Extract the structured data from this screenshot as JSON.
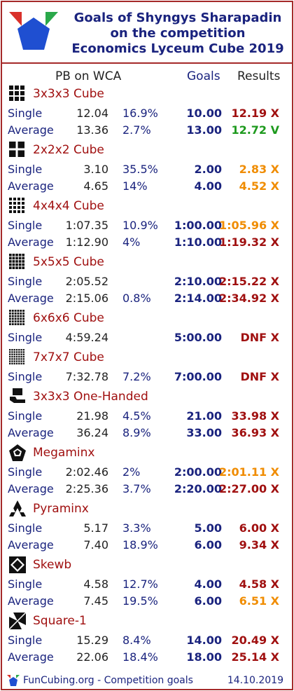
{
  "header": {
    "title_line1": "Goals of Shyngys Sharapadin",
    "title_line2": "on the competition",
    "title_line3": "Economics Lyceum Cube 2019"
  },
  "columns": {
    "pb": "PB on WCA",
    "goals": "Goals",
    "results": "Results"
  },
  "colors": {
    "border": "#a52a2a",
    "label": "#1a237e",
    "event": "#a01010",
    "fail": "#a01010",
    "success": "#1e9a1e",
    "partial": "#f08c00"
  },
  "events": [
    {
      "name": "3x3x3 Cube",
      "icon": "cube-3x3-icon",
      "rows": [
        {
          "label": "Single",
          "pb": "12.04",
          "pct": "16.9%",
          "goal": "10.00",
          "result": "12.19 X",
          "status": "fail"
        },
        {
          "label": "Average",
          "pb": "13.36",
          "pct": "2.7%",
          "goal": "13.00",
          "result": "12.72 V",
          "status": "success"
        }
      ]
    },
    {
      "name": "2x2x2 Cube",
      "icon": "cube-2x2-icon",
      "rows": [
        {
          "label": "Single",
          "pb": "3.10",
          "pct": "35.5%",
          "goal": "2.00",
          "result": "2.83 X",
          "status": "partial"
        },
        {
          "label": "Average",
          "pb": "4.65",
          "pct": "14%",
          "goal": "4.00",
          "result": "4.52 X",
          "status": "partial"
        }
      ]
    },
    {
      "name": "4x4x4 Cube",
      "icon": "cube-4x4-icon",
      "rows": [
        {
          "label": "Single",
          "pb": "1:07.35",
          "pct": "10.9%",
          "goal": "1:00.00",
          "result": "1:05.96 X",
          "status": "partial"
        },
        {
          "label": "Average",
          "pb": "1:12.90",
          "pct": "4%",
          "goal": "1:10.00",
          "result": "1:19.32 X",
          "status": "fail"
        }
      ]
    },
    {
      "name": "5x5x5 Cube",
      "icon": "cube-5x5-icon",
      "rows": [
        {
          "label": "Single",
          "pb": "2:05.52",
          "pct": "",
          "goal": "2:10.00",
          "result": "2:15.22 X",
          "status": "fail"
        },
        {
          "label": "Average",
          "pb": "2:15.06",
          "pct": "0.8%",
          "goal": "2:14.00",
          "result": "2:34.92 X",
          "status": "fail"
        }
      ]
    },
    {
      "name": "6x6x6 Cube",
      "icon": "cube-6x6-icon",
      "rows": [
        {
          "label": "Single",
          "pb": "4:59.24",
          "pct": "",
          "goal": "5:00.00",
          "result": "DNF X",
          "status": "fail"
        }
      ]
    },
    {
      "name": "7x7x7 Cube",
      "icon": "cube-7x7-icon",
      "rows": [
        {
          "label": "Single",
          "pb": "7:32.78",
          "pct": "7.2%",
          "goal": "7:00.00",
          "result": "DNF X",
          "status": "fail"
        }
      ]
    },
    {
      "name": "3x3x3 One-Handed",
      "icon": "one-handed-icon",
      "rows": [
        {
          "label": "Single",
          "pb": "21.98",
          "pct": "4.5%",
          "goal": "21.00",
          "result": "33.98 X",
          "status": "fail"
        },
        {
          "label": "Average",
          "pb": "36.24",
          "pct": "8.9%",
          "goal": "33.00",
          "result": "36.93 X",
          "status": "fail"
        }
      ]
    },
    {
      "name": "Megaminx",
      "icon": "megaminx-icon",
      "rows": [
        {
          "label": "Single",
          "pb": "2:02.46",
          "pct": "2%",
          "goal": "2:00.00",
          "result": "2:01.11 X",
          "status": "partial"
        },
        {
          "label": "Average",
          "pb": "2:25.36",
          "pct": "3.7%",
          "goal": "2:20.00",
          "result": "2:27.00 X",
          "status": "fail"
        }
      ]
    },
    {
      "name": "Pyraminx",
      "icon": "pyraminx-icon",
      "rows": [
        {
          "label": "Single",
          "pb": "5.17",
          "pct": "3.3%",
          "goal": "5.00",
          "result": "6.00 X",
          "status": "fail"
        },
        {
          "label": "Average",
          "pb": "7.40",
          "pct": "18.9%",
          "goal": "6.00",
          "result": "9.34 X",
          "status": "fail"
        }
      ]
    },
    {
      "name": "Skewb",
      "icon": "skewb-icon",
      "rows": [
        {
          "label": "Single",
          "pb": "4.58",
          "pct": "12.7%",
          "goal": "4.00",
          "result": "4.58 X",
          "status": "fail"
        },
        {
          "label": "Average",
          "pb": "7.45",
          "pct": "19.5%",
          "goal": "6.00",
          "result": "6.51 X",
          "status": "partial"
        }
      ]
    },
    {
      "name": "Square-1",
      "icon": "square-1-icon",
      "rows": [
        {
          "label": "Single",
          "pb": "15.29",
          "pct": "8.4%",
          "goal": "14.00",
          "result": "20.49 X",
          "status": "fail"
        },
        {
          "label": "Average",
          "pb": "22.06",
          "pct": "18.4%",
          "goal": "18.00",
          "result": "25.14 X",
          "status": "fail"
        }
      ]
    }
  ],
  "footer": {
    "site": "FunCubing.org - Competition goals",
    "date": "14.10.2019"
  }
}
